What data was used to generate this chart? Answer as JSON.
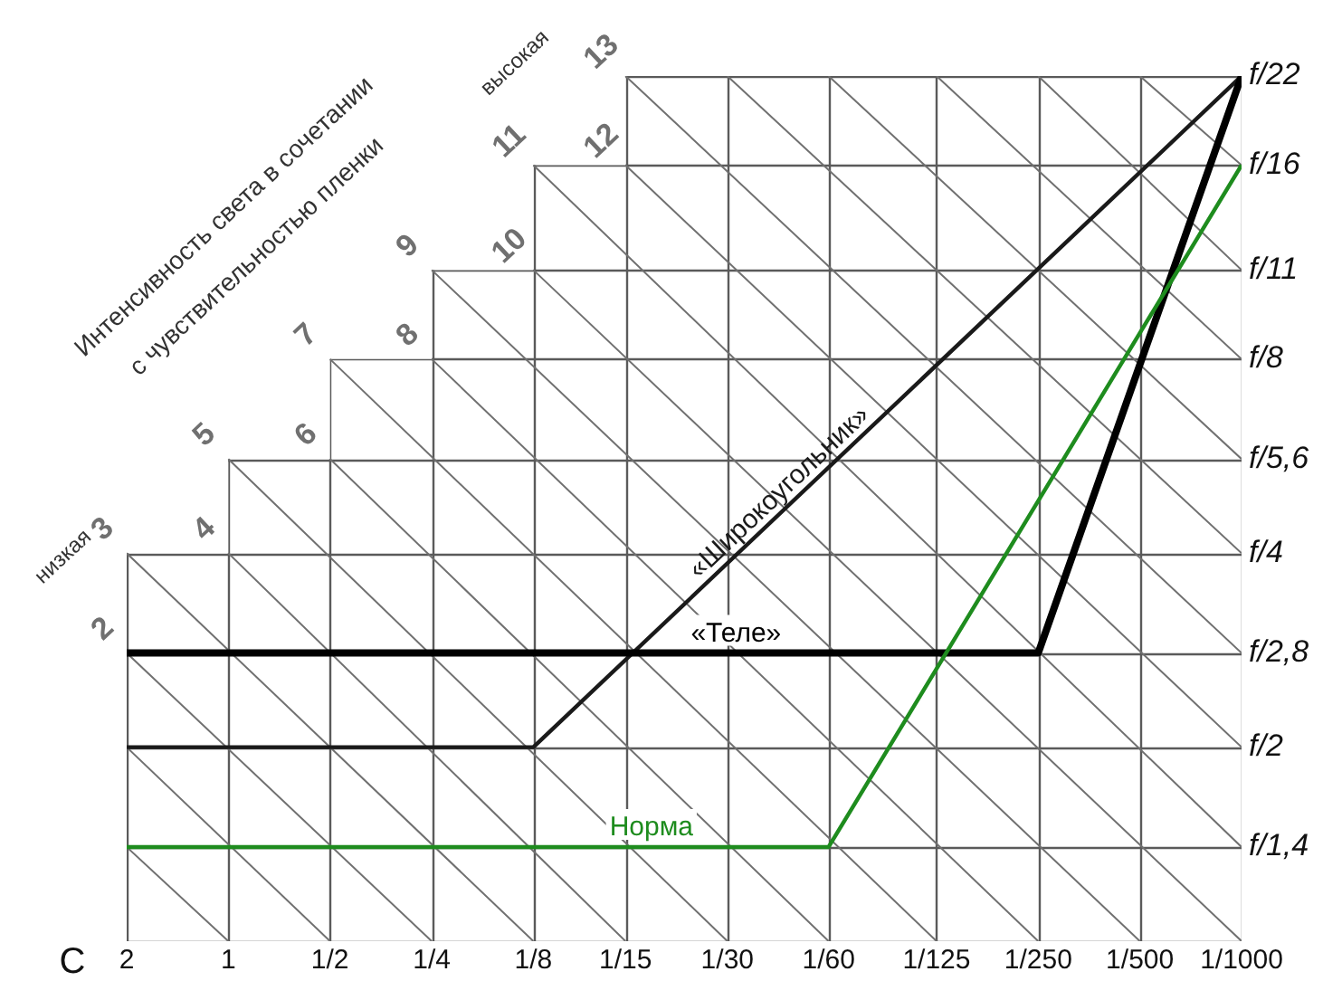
{
  "chart_data": {
    "type": "line",
    "title": "Интенсивность света в сочетании",
    "subtitle": "с чувствительностью пленки",
    "xlabel": "С",
    "annotations": [
      "низкая",
      "высокая"
    ],
    "log": "xy",
    "xlim": [
      2,
      0.001
    ],
    "ylim": [
      1,
      22
    ],
    "xticks": [
      2,
      1,
      {
        "value": 0.5,
        "label": "1/2"
      },
      {
        "value": 0.25,
        "label": "1/4"
      },
      {
        "value": 0.125,
        "label": "1/8"
      },
      {
        "value": 0.0667,
        "label": "1/15"
      },
      {
        "value": 0.0333,
        "label": "1/30"
      },
      {
        "value": 0.0167,
        "label": "1/60"
      },
      {
        "value": 0.008,
        "label": "1/125"
      },
      {
        "value": 0.004,
        "label": "1/250"
      },
      {
        "value": 0.002,
        "label": "1/500"
      },
      {
        "value": 0.001,
        "label": "1/1000"
      }
    ],
    "yticks": [
      {
        "value": 1,
        "label": null
      },
      {
        "value": 1.4,
        "label": "f/1,4"
      },
      {
        "value": 2,
        "label": "f/2"
      },
      {
        "value": 2.8,
        "label": "f/2,8"
      },
      {
        "value": 4,
        "label": "f/4"
      },
      {
        "value": 5.6,
        "label": "f/5,6"
      },
      {
        "value": 8,
        "label": "f/8"
      },
      {
        "value": 11,
        "label": "f/11"
      },
      {
        "value": 16,
        "label": "f/16"
      },
      {
        "value": 22,
        "label": "f/22"
      }
    ],
    "grid": true,
    "legend": false,
    "series": [
      {
        "name": "Норма",
        "color": "#1e8c1e",
        "x": [
          2,
          0.0167,
          0.001
        ],
        "values": [
          1.4,
          1.4,
          16
        ]
      },
      {
        "name": "«Теле»",
        "color": "#000000",
        "x": [
          2,
          0.004,
          0.001
        ],
        "values": [
          2.8,
          2.8,
          22
        ]
      },
      {
        "name": "«Широкоугольник»",
        "color": "#1a1a1a",
        "x": [
          2,
          0.125,
          0.001
        ],
        "values": [
          2,
          2,
          22
        ]
      },
      {
        "color": "#707070",
        "x": [
          2,
          1
        ],
        "values": [
          1.4,
          1
        ]
      },
      {
        "color": "#707070",
        "x": [
          2,
          0.5
        ],
        "values": [
          2,
          1
        ]
      },
      {
        "name": "2",
        "color": "#707070",
        "x": [
          2,
          0.25
        ],
        "values": [
          2.8,
          1
        ]
      },
      {
        "name": "3",
        "color": "#707070",
        "x": [
          2,
          0.125
        ],
        "values": [
          4,
          1
        ]
      },
      {
        "name": "4",
        "color": "#707070",
        "x": [
          1,
          0.0667
        ],
        "values": [
          4,
          1
        ]
      },
      {
        "name": "5",
        "color": "#707070",
        "x": [
          1,
          0.0333
        ],
        "values": [
          5.6,
          1
        ]
      },
      {
        "name": "6",
        "color": "#707070",
        "x": [
          0.5,
          0.0167
        ],
        "values": [
          5.6,
          1
        ]
      },
      {
        "name": "7",
        "color": "#707070",
        "x": [
          0.5,
          0.008
        ],
        "values": [
          8,
          1
        ]
      },
      {
        "name": "8",
        "color": "#707070",
        "x": [
          0.25,
          0.004
        ],
        "values": [
          8,
          1
        ]
      },
      {
        "name": "9",
        "color": "#707070",
        "x": [
          0.25,
          0.002
        ],
        "values": [
          11,
          1
        ]
      },
      {
        "name": "10",
        "color": "#707070",
        "x": [
          0.125,
          0.001
        ],
        "values": [
          11,
          1
        ]
      },
      {
        "name": "11",
        "color": "#707070",
        "x": [
          0.125,
          0.001
        ],
        "values": [
          16,
          1.4
        ]
      },
      {
        "name": "12",
        "color": "#707070",
        "x": [
          0.0667,
          0.001
        ],
        "values": [
          16,
          2
        ]
      },
      {
        "name": "13",
        "color": "#707070",
        "x": [
          0.0667,
          0.001
        ],
        "values": [
          22,
          2.8
        ]
      },
      {
        "color": "#707070",
        "x": [
          0.0333,
          0.001
        ],
        "values": [
          22,
          4
        ]
      },
      {
        "color": "#707070",
        "x": [
          0.0167,
          0.001
        ],
        "values": [
          22,
          5.6
        ]
      },
      {
        "color": "#707070",
        "x": [
          0.008,
          0.001
        ],
        "values": [
          22,
          8
        ]
      },
      {
        "color": "#707070",
        "x": [
          0.004,
          0.001
        ],
        "values": [
          22,
          11
        ]
      },
      {
        "color": "#707070",
        "x": [
          0.002,
          0.001
        ],
        "values": [
          22,
          16
        ]
      }
    ]
  }
}
